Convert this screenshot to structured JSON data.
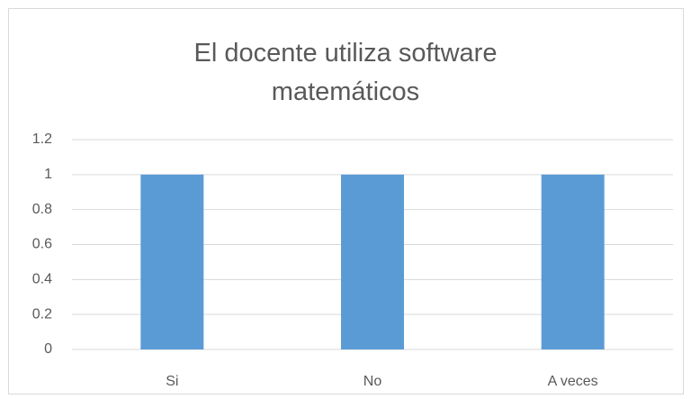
{
  "chart_data": {
    "type": "bar",
    "title": "El docente utiliza software matemáticos",
    "categories": [
      "Si",
      "No",
      "A veces"
    ],
    "values": [
      1,
      1,
      1
    ],
    "color": "#5b9bd5",
    "ylim": [
      0,
      1.2
    ],
    "yticks": [
      0,
      0.2,
      0.4,
      0.6,
      0.8,
      1,
      1.2
    ],
    "grid": true
  }
}
